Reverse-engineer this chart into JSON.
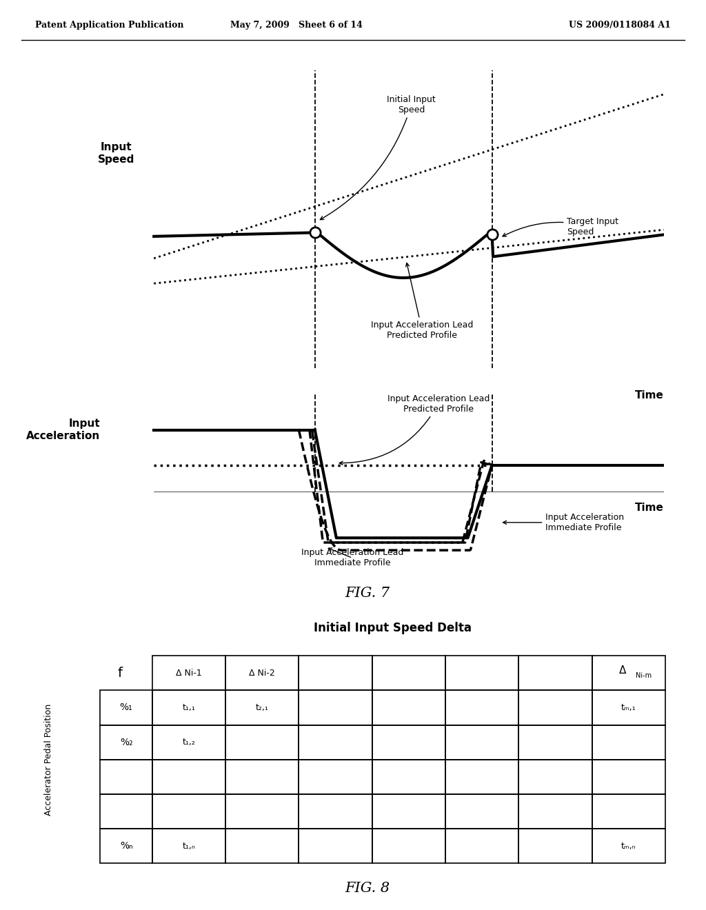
{
  "header_left": "Patent Application Publication",
  "header_mid": "May 7, 2009   Sheet 6 of 14",
  "header_right": "US 2009/0118084 A1",
  "fig7_label": "FIG. 7",
  "fig8_label": "FIG. 8",
  "fig8_title": "Initial Input Speed Delta",
  "top_ylabel": "Input\nSpeed",
  "top_xlabel": "Time",
  "bot_ylabel": "Input\nAcceleration",
  "bot_xlabel": "Time",
  "label_initial_input_speed": "Initial Input\nSpeed",
  "label_target_input_speed": "Target Input\nSpeed",
  "label_ia_lead_predicted_top": "Input Acceleration Lead\nPredicted Profile",
  "label_ia_lead_predicted_bot": "Input Acceleration Lead\nPredicted Profile",
  "label_ia_immediate": "Input Acceleration\nImmediate Profile",
  "label_ia_lead_immediate": "Input Acceleration Lead\nImmediate Profile"
}
